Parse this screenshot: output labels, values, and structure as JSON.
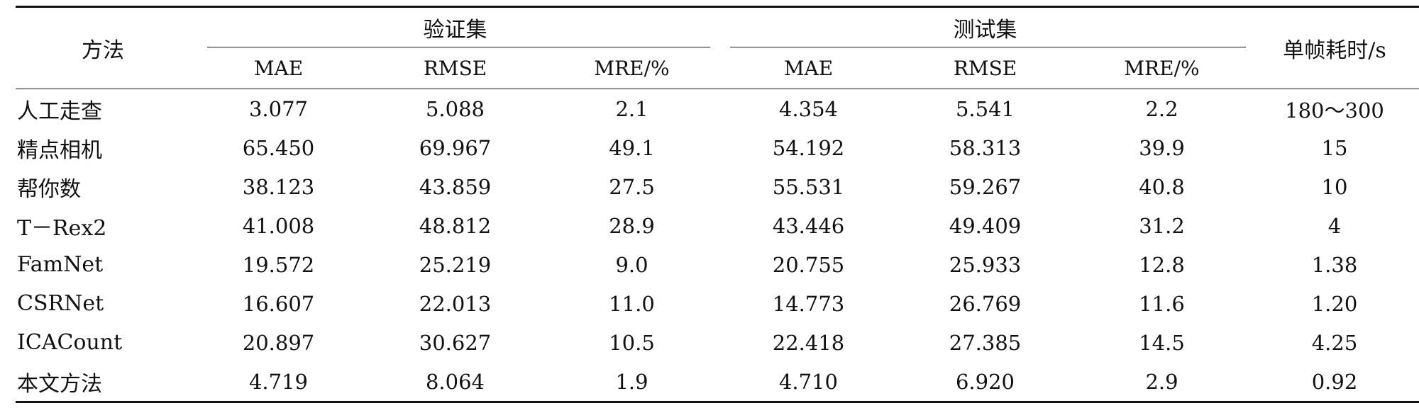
{
  "table": {
    "header": {
      "method": "方法",
      "validation_group": "验证集",
      "test_group": "测试集",
      "time": "单帧耗时/s",
      "metrics": [
        "MAE",
        "RMSE",
        "MRE/%",
        "MAE",
        "RMSE",
        "MRE/%"
      ]
    },
    "rows": [
      {
        "method": "人工走查",
        "val_mae": "3.077",
        "val_rmse": "5.088",
        "val_mre": "2.1",
        "test_mae": "4.354",
        "test_rmse": "5.541",
        "test_mre": "2.2",
        "time": "180～300"
      },
      {
        "method": "精点相机",
        "val_mae": "65.450",
        "val_rmse": "69.967",
        "val_mre": "49.1",
        "test_mae": "54.192",
        "test_rmse": "58.313",
        "test_mre": "39.9",
        "time": "15"
      },
      {
        "method": "帮你数",
        "val_mae": "38.123",
        "val_rmse": "43.859",
        "val_mre": "27.5",
        "test_mae": "55.531",
        "test_rmse": "59.267",
        "test_mre": "40.8",
        "time": "10"
      },
      {
        "method": "T－Rex2",
        "val_mae": "41.008",
        "val_rmse": "48.812",
        "val_mre": "28.9",
        "test_mae": "43.446",
        "test_rmse": "49.409",
        "test_mre": "31.2",
        "time": "4"
      },
      {
        "method": "FamNet",
        "val_mae": "19.572",
        "val_rmse": "25.219",
        "val_mre": "9.0",
        "test_mae": "20.755",
        "test_rmse": "25.933",
        "test_mre": "12.8",
        "time": "1.38"
      },
      {
        "method": "CSRNet",
        "val_mae": "16.607",
        "val_rmse": "22.013",
        "val_mre": "11.0",
        "test_mae": "14.773",
        "test_rmse": "26.769",
        "test_mre": "11.6",
        "time": "1.20"
      },
      {
        "method": "ICACount",
        "val_mae": "20.897",
        "val_rmse": "30.627",
        "val_mre": "10.5",
        "test_mae": "22.418",
        "test_rmse": "27.385",
        "test_mre": "14.5",
        "time": "4.25"
      },
      {
        "method": "本文方法",
        "val_mae": "4.719",
        "val_rmse": "8.064",
        "val_mre": "1.9",
        "test_mae": "4.710",
        "test_rmse": "6.920",
        "test_mre": "2.9",
        "time": "0.92"
      }
    ]
  }
}
